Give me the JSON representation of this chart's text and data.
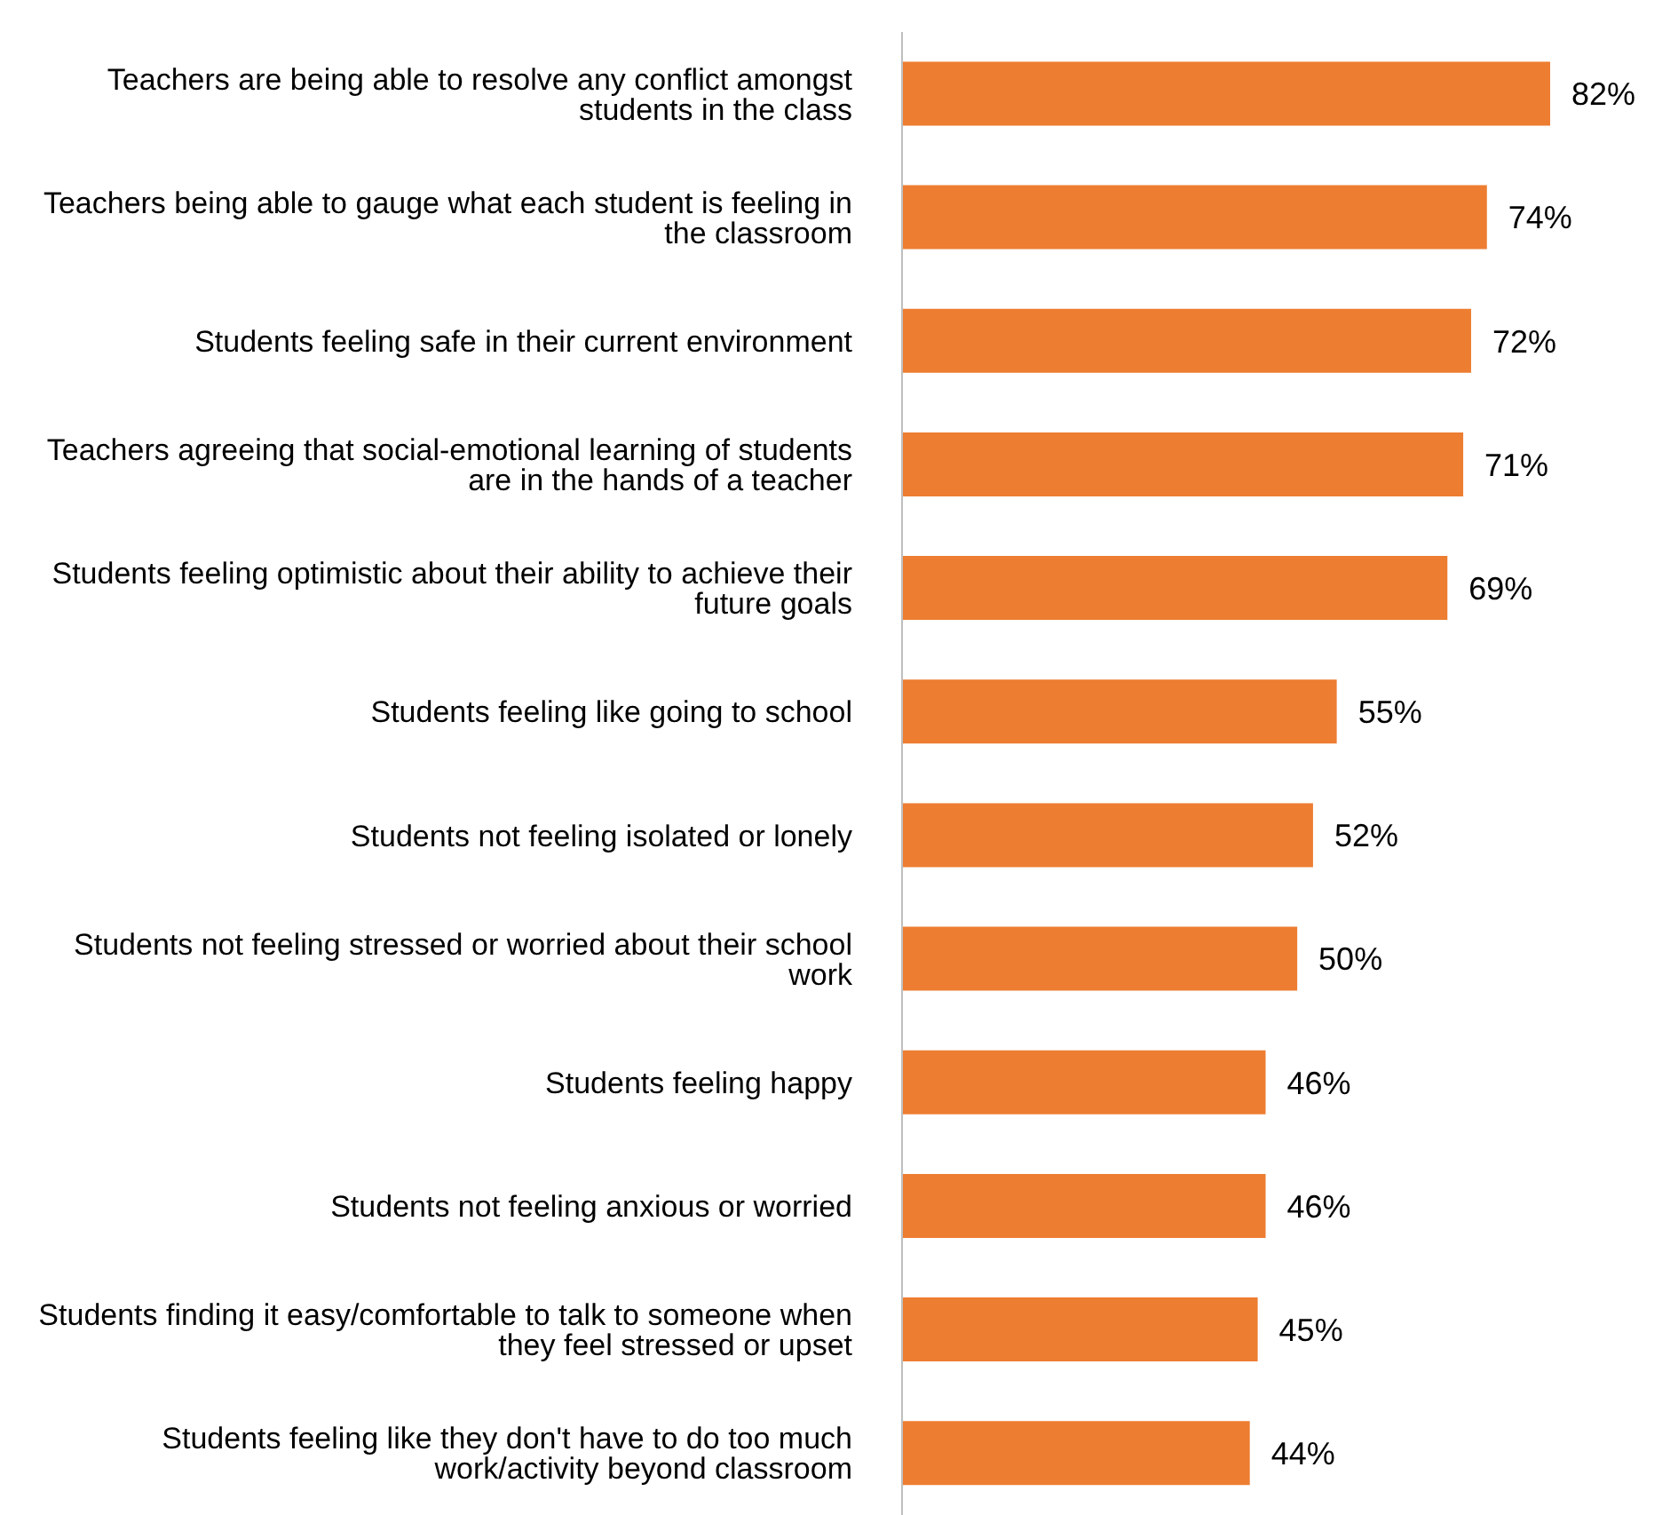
{
  "chart_data": {
    "type": "bar",
    "orientation": "horizontal",
    "categories": [
      "Teachers are being able to resolve any conflict amongst students in the class",
      "Teachers being able to gauge what each student is feeling in the classroom",
      "Students feeling safe in their current environment",
      "Teachers agreeing that social-emotional learning of students are  in the hands of a teacher",
      "Students feeling optimistic about their ability to achieve their future goals",
      "Students feeling like going to school",
      "Students not feeling isolated or lonely",
      "Students not feeling stressed or worried about their school work",
      "Students feeling happy",
      "Students not feeling anxious or worried",
      "Students  finding it easy/comfortable to talk to someone when they feel stressed or upset",
      "Students feeling like they don't have  to do too much work/activity beyond classroom"
    ],
    "values": [
      82,
      74,
      72,
      71,
      69,
      55,
      52,
      50,
      46,
      46,
      45,
      44
    ],
    "value_labels": [
      "82%",
      "74%",
      "72%",
      "71%",
      "69%",
      "55%",
      "52%",
      "50%",
      "46%",
      "46%",
      "45%",
      "44%"
    ],
    "color": "#ed7d31",
    "grid": false,
    "legend": false,
    "tick_labels": "y"
  }
}
